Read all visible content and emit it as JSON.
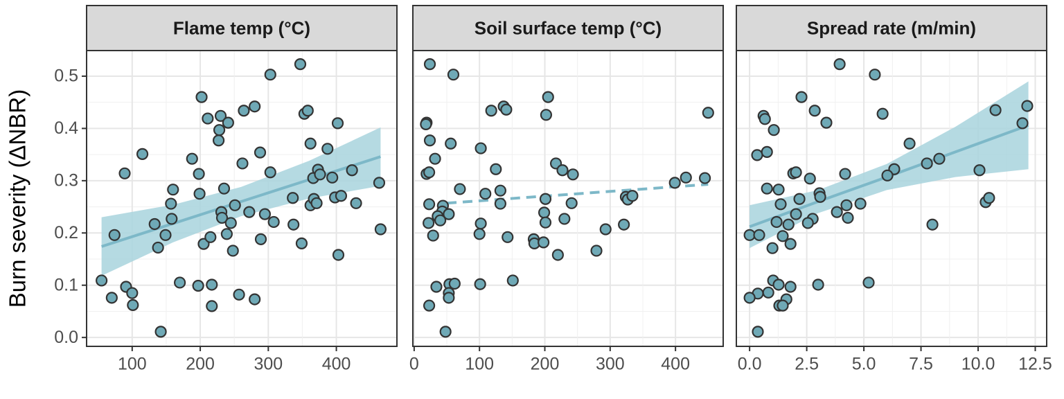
{
  "chart_data": [
    {
      "type": "scatter",
      "title": "Flame temp (°C)",
      "ylabel": "Burn severity (ΔNBR)",
      "x": [
        55,
        70,
        74,
        89,
        91,
        100,
        101,
        115,
        133,
        138,
        142,
        149,
        157,
        158,
        160,
        170,
        188,
        197,
        198,
        199,
        202,
        205,
        211,
        215,
        217,
        217,
        227,
        228,
        230,
        231,
        232,
        235,
        241,
        239,
        245,
        248,
        251,
        257,
        262,
        264,
        272,
        280,
        280,
        288,
        289,
        295,
        303,
        303,
        308,
        336,
        337,
        347,
        349,
        353,
        358,
        362,
        362,
        366,
        367,
        371,
        373,
        376,
        387,
        394,
        398,
        402,
        403,
        407,
        423,
        429,
        463,
        465
      ],
      "y": [
        0.109,
        0.076,
        0.196,
        0.314,
        0.097,
        0.085,
        0.062,
        0.351,
        0.217,
        0.172,
        0.011,
        0.196,
        0.256,
        0.227,
        0.283,
        0.105,
        0.342,
        0.099,
        0.313,
        0.275,
        0.46,
        0.179,
        0.419,
        0.192,
        0.101,
        0.06,
        0.377,
        0.397,
        0.424,
        0.24,
        0.229,
        0.285,
        0.411,
        0.198,
        0.219,
        0.166,
        0.253,
        0.082,
        0.333,
        0.434,
        0.24,
        0.442,
        0.073,
        0.354,
        0.188,
        0.236,
        0.503,
        0.316,
        0.221,
        0.267,
        0.216,
        0.523,
        0.18,
        0.428,
        0.434,
        0.371,
        0.253,
        0.305,
        0.265,
        0.257,
        0.321,
        0.312,
        0.361,
        0.306,
        0.268,
        0.41,
        0.158,
        0.271,
        0.32,
        0.257,
        0.296,
        0.207
      ],
      "fit": {
        "x": [
          55,
          160,
          260,
          360,
          465
        ],
        "y": [
          0.174,
          0.218,
          0.26,
          0.302,
          0.346
        ],
        "lower": [
          0.118,
          0.182,
          0.232,
          0.266,
          0.29
        ],
        "upper": [
          0.23,
          0.254,
          0.288,
          0.338,
          0.402
        ],
        "linestyle": "solid"
      },
      "color": "#6fa9b6",
      "fit_color": "#7db8c8",
      "band_color": "#a8d3dd",
      "xlim": [
        33,
        489
      ],
      "ylim": [
        -0.017,
        0.549
      ],
      "xticks": [
        100,
        200,
        300,
        400
      ],
      "yticks": [
        {
          "value": 0,
          "label": "0.0"
        },
        0.1,
        0.2,
        0.3,
        0.4,
        0.5
      ],
      "grid": true
    },
    {
      "type": "scatter",
      "title": "Soil surface temp (°C)",
      "x": [
        24,
        60,
        19,
        18,
        24,
        32,
        19,
        23,
        23,
        44,
        43,
        36,
        40,
        22,
        53,
        29,
        56,
        34,
        23,
        48,
        54,
        53,
        53,
        62,
        70,
        102,
        109,
        102,
        100,
        101,
        118,
        125,
        132,
        132,
        137,
        141,
        143,
        151,
        183,
        184,
        198,
        199,
        201,
        201,
        202,
        205,
        217,
        220,
        227,
        230,
        241,
        243,
        279,
        293,
        321,
        324,
        327,
        334,
        399,
        416,
        445,
        450
      ],
      "y": [
        0.523,
        0.503,
        0.411,
        0.408,
        0.377,
        0.342,
        0.313,
        0.316,
        0.255,
        0.252,
        0.241,
        0.232,
        0.224,
        0.219,
        0.236,
        0.195,
        0.371,
        0.097,
        0.061,
        0.011,
        0.102,
        0.085,
        0.076,
        0.103,
        0.284,
        0.362,
        0.275,
        0.218,
        0.198,
        0.102,
        0.434,
        0.322,
        0.281,
        0.256,
        0.442,
        0.436,
        0.192,
        0.109,
        0.188,
        0.18,
        0.182,
        0.239,
        0.22,
        0.265,
        0.426,
        0.46,
        0.333,
        0.158,
        0.32,
        0.227,
        0.257,
        0.312,
        0.166,
        0.207,
        0.216,
        0.269,
        0.264,
        0.271,
        0.296,
        0.306,
        0.305,
        0.43
      ],
      "fit": {
        "x": [
          50,
          450
        ],
        "y": [
          0.257,
          0.293
        ],
        "linestyle": "dashed"
      },
      "color": "#6fa9b6",
      "fit_color": "#7db8c8",
      "xlim": [
        -2,
        473
      ],
      "ylim": [
        -0.017,
        0.549
      ],
      "xticks": [
        0,
        100,
        200,
        300,
        400
      ],
      "yticks": [
        {
          "value": 0,
          "label": "0.0"
        },
        0.1,
        0.2,
        0.3,
        0.4,
        0.5
      ],
      "grid": true
    },
    {
      "type": "scatter",
      "title": "Spread rate (m/min)",
      "x": [
        3.94,
        5.48,
        2.27,
        2.85,
        5.82,
        12.15,
        10.76,
        11.94,
        0.61,
        0.67,
        1.06,
        3.36,
        7.0,
        0.33,
        0.76,
        8.3,
        7.76,
        6.33,
        10.06,
        6.03,
        1.91,
        2.03,
        4.18,
        2.64,
        0.76,
        1.27,
        2.18,
        3.06,
        3.09,
        4.85,
        1.36,
        4.24,
        10.33,
        10.48,
        3.82,
        2.03,
        2.76,
        4.3,
        1.18,
        2.55,
        1.7,
        8.0,
        0.0,
        0.42,
        1.45,
        1.79,
        1.0,
        1.03,
        1.27,
        3.0,
        5.21,
        1.79,
        0.82,
        0.36,
        0.0,
        1.61,
        1.3,
        1.45,
        0.36
      ],
      "y": [
        0.523,
        0.503,
        0.46,
        0.434,
        0.428,
        0.443,
        0.435,
        0.41,
        0.424,
        0.418,
        0.397,
        0.411,
        0.371,
        0.349,
        0.355,
        0.342,
        0.333,
        0.322,
        0.32,
        0.31,
        0.314,
        0.316,
        0.313,
        0.304,
        0.285,
        0.283,
        0.265,
        0.276,
        0.269,
        0.256,
        0.255,
        0.253,
        0.259,
        0.267,
        0.24,
        0.236,
        0.227,
        0.229,
        0.221,
        0.219,
        0.216,
        0.216,
        0.196,
        0.196,
        0.194,
        0.179,
        0.171,
        0.109,
        0.101,
        0.101,
        0.105,
        0.097,
        0.086,
        0.084,
        0.076,
        0.073,
        0.061,
        0.061,
        0.011
      ],
      "fit": {
        "x": [
          0,
          3,
          6,
          9,
          12.2
        ],
        "y": [
          0.212,
          0.26,
          0.307,
          0.355,
          0.406
        ],
        "lower": [
          0.171,
          0.238,
          0.282,
          0.307,
          0.322
        ],
        "upper": [
          0.253,
          0.282,
          0.332,
          0.403,
          0.49
        ],
        "linestyle": "solid"
      },
      "color": "#6fa9b6",
      "fit_color": "#7db8c8",
      "band_color": "#a8d3dd",
      "xlim": [
        -0.58,
        13.0
      ],
      "ylim": [
        -0.017,
        0.549
      ],
      "xticks": [
        {
          "value": 0,
          "label": "0.0"
        },
        2.5,
        {
          "value": 5,
          "label": "5.0"
        },
        7.5,
        {
          "value": 10,
          "label": "10.0"
        },
        12.5
      ],
      "yticks": [
        {
          "value": 0,
          "label": "0.0"
        },
        0.1,
        0.2,
        0.3,
        0.4,
        0.5
      ],
      "grid": true
    }
  ]
}
